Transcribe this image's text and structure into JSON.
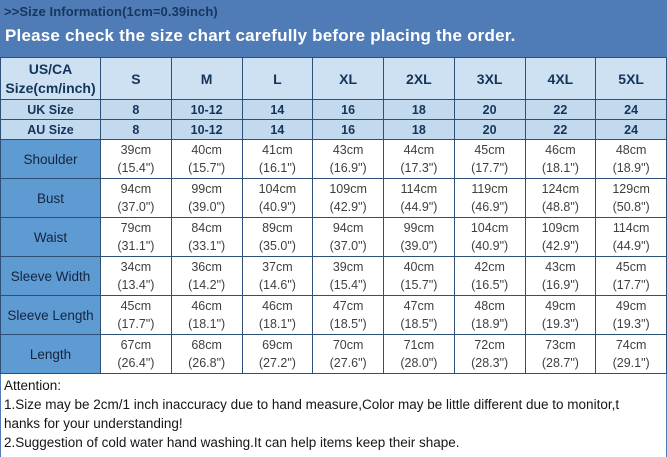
{
  "header": {
    "size_info_label": ">>Size Information(1cm=0.39inch)",
    "banner_text": "Please check the size chart carefully before placing the order."
  },
  "table": {
    "corner_line1": "US/CA",
    "corner_line2": "Size(cm/inch)",
    "size_columns": [
      "S",
      "M",
      "L",
      "XL",
      "2XL",
      "3XL",
      "4XL",
      "5XL"
    ],
    "uk_row": {
      "label": "UK Size",
      "values": [
        "8",
        "10-12",
        "14",
        "16",
        "18",
        "20",
        "22",
        "24"
      ]
    },
    "au_row": {
      "label": "AU Size",
      "values": [
        "8",
        "10-12",
        "14",
        "16",
        "18",
        "20",
        "22",
        "24"
      ]
    },
    "measurement_rows": [
      {
        "label": "Shoulder",
        "cells": [
          {
            "cm": "39cm",
            "in": "(15.4\")"
          },
          {
            "cm": "40cm",
            "in": "(15.7\")"
          },
          {
            "cm": "41cm",
            "in": "(16.1\")"
          },
          {
            "cm": "43cm",
            "in": "(16.9\")"
          },
          {
            "cm": "44cm",
            "in": "(17.3\")"
          },
          {
            "cm": "45cm",
            "in": "(17.7\")"
          },
          {
            "cm": "46cm",
            "in": "(18.1\")"
          },
          {
            "cm": "48cm",
            "in": "(18.9\")"
          }
        ]
      },
      {
        "label": "Bust",
        "cells": [
          {
            "cm": "94cm",
            "in": "(37.0\")"
          },
          {
            "cm": "99cm",
            "in": "(39.0\")"
          },
          {
            "cm": "104cm",
            "in": "(40.9\")"
          },
          {
            "cm": "109cm",
            "in": "(42.9\")"
          },
          {
            "cm": "114cm",
            "in": "(44.9\")"
          },
          {
            "cm": "119cm",
            "in": "(46.9\")"
          },
          {
            "cm": "124cm",
            "in": "(48.8\")"
          },
          {
            "cm": "129cm",
            "in": "(50.8\")"
          }
        ]
      },
      {
        "label": "Waist",
        "cells": [
          {
            "cm": "79cm",
            "in": "(31.1\")"
          },
          {
            "cm": "84cm",
            "in": "(33.1\")"
          },
          {
            "cm": "89cm",
            "in": "(35.0\")"
          },
          {
            "cm": "94cm",
            "in": "(37.0\")"
          },
          {
            "cm": "99cm",
            "in": "(39.0\")"
          },
          {
            "cm": "104cm",
            "in": "(40.9\")"
          },
          {
            "cm": "109cm",
            "in": "(42.9\")"
          },
          {
            "cm": "114cm",
            "in": "(44.9\")"
          }
        ]
      },
      {
        "label": "Sleeve Width",
        "cells": [
          {
            "cm": "34cm",
            "in": "(13.4\")"
          },
          {
            "cm": "36cm",
            "in": "(14.2\")"
          },
          {
            "cm": "37cm",
            "in": "(14.6\")"
          },
          {
            "cm": "39cm",
            "in": "(15.4\")"
          },
          {
            "cm": "40cm",
            "in": "(15.7\")"
          },
          {
            "cm": "42cm",
            "in": "(16.5\")"
          },
          {
            "cm": "43cm",
            "in": "(16.9\")"
          },
          {
            "cm": "45cm",
            "in": "(17.7\")"
          }
        ]
      },
      {
        "label": "Sleeve Length",
        "cells": [
          {
            "cm": "45cm",
            "in": "(17.7\")"
          },
          {
            "cm": "46cm",
            "in": "(18.1\")"
          },
          {
            "cm": "46cm",
            "in": "(18.1\")"
          },
          {
            "cm": "47cm",
            "in": "(18.5\")"
          },
          {
            "cm": "47cm",
            "in": "(18.5\")"
          },
          {
            "cm": "48cm",
            "in": "(18.9\")"
          },
          {
            "cm": "49cm",
            "in": "(19.3\")"
          },
          {
            "cm": "49cm",
            "in": "(19.3\")"
          }
        ]
      },
      {
        "label": "Length",
        "cells": [
          {
            "cm": "67cm",
            "in": "(26.4\")"
          },
          {
            "cm": "68cm",
            "in": "(26.8\")"
          },
          {
            "cm": "69cm",
            "in": "(27.2\")"
          },
          {
            "cm": "70cm",
            "in": "(27.6\")"
          },
          {
            "cm": "71cm",
            "in": "(28.0\")"
          },
          {
            "cm": "72cm",
            "in": "(28.3\")"
          },
          {
            "cm": "73cm",
            "in": "(28.7\")"
          },
          {
            "cm": "74cm",
            "in": "(29.1\")"
          }
        ]
      }
    ]
  },
  "attention": {
    "title": "Attention:",
    "lines": [
      "1.Size may be 2cm/1 inch inaccuracy due to hand measure,Color may be little different due to monitor,t",
      "hanks for your understanding!",
      "2.Suggestion of cold water hand washing.It can help items keep their shape."
    ]
  },
  "colors": {
    "banner_blue": "#4f7cb7",
    "header_light_blue": "#cde1f2",
    "size_row_blue": "#c3d9ee",
    "label_cell_blue": "#5e9bd3",
    "navy_text": "#14345a",
    "border_dark": "#2e5077",
    "value_text": "#3f3f3f"
  }
}
